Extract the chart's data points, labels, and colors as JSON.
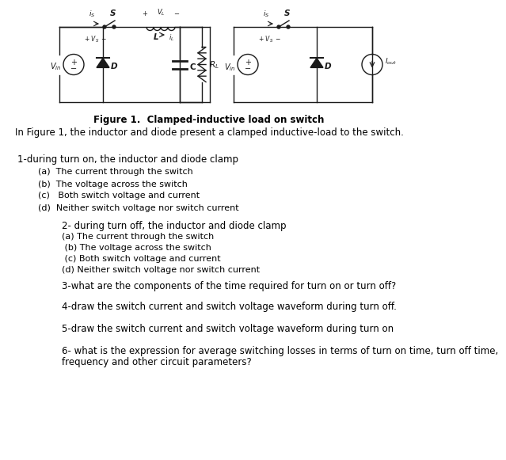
{
  "figure_caption": "Figure 1.  Clamped-inductive load on switch",
  "intro_text": "In Figure 1, the inductor and diode present a clamped inductive-load to the switch.",
  "q1_header": "1-during turn on, the inductor and diode clamp",
  "q1_options": [
    "(a)  The current through the switch",
    "(b)  The voltage across the switch",
    "(c)   Both switch voltage and current",
    "(d)  Neither switch voltage nor switch current"
  ],
  "q2_header": "2- during turn off, the inductor and diode clamp",
  "q2_options": [
    "(a) The current through the switch",
    " (b) The voltage across the switch",
    " (c) Both switch voltage and current",
    "(d) Neither switch voltage nor switch current"
  ],
  "q3": "3-what are the components of the time required for turn on or turn off?",
  "q4": "4-draw the switch current and switch voltage waveform during turn off.",
  "q5": "5-draw the switch current and switch voltage waveform during turn on",
  "q6_line1": "6- what is the expression for average switching losses in terms of turn on time, turn off time,",
  "q6_line2": "frequency and other circuit parameters?",
  "bg_color": "#ffffff",
  "text_color": "#1a1a1a",
  "circuit_color": "#1a1a1a"
}
